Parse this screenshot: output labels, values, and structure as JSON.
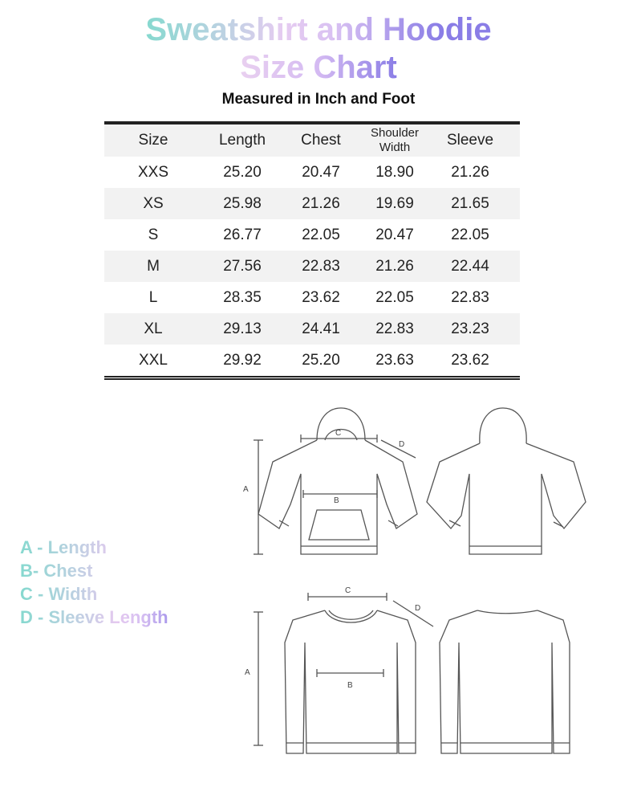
{
  "title": {
    "line1": "Sweatshirt and Hoodie",
    "line2": "Size Chart"
  },
  "subtitle": "Measured in Inch and Foot",
  "table": {
    "headers": [
      "Size",
      "Length",
      "Chest",
      "Shoulder Width",
      "Sleeve"
    ],
    "rows": [
      [
        "XXS",
        "25.20",
        "20.47",
        "18.90",
        "21.26"
      ],
      [
        "XS",
        "25.98",
        "21.26",
        "19.69",
        "21.65"
      ],
      [
        "S",
        "26.77",
        "22.05",
        "20.47",
        "22.05"
      ],
      [
        "M",
        "27.56",
        "22.83",
        "21.26",
        "22.44"
      ],
      [
        "L",
        "28.35",
        "23.62",
        "22.05",
        "22.83"
      ],
      [
        "XL",
        "29.13",
        "24.41",
        "22.83",
        "23.23"
      ],
      [
        "XXL",
        "29.92",
        "25.20",
        "23.63",
        "23.62"
      ]
    ]
  },
  "legend": [
    "A - Length",
    "B- Chest",
    "C - Width",
    "D - Sleeve Length"
  ],
  "diagram_labels": {
    "a": "A",
    "b": "B",
    "c": "C",
    "d": "D"
  },
  "colors": {
    "gradient_start": "#86d9cf",
    "gradient_mid": "#e4c9ef",
    "gradient_end": "#8a7de6"
  }
}
